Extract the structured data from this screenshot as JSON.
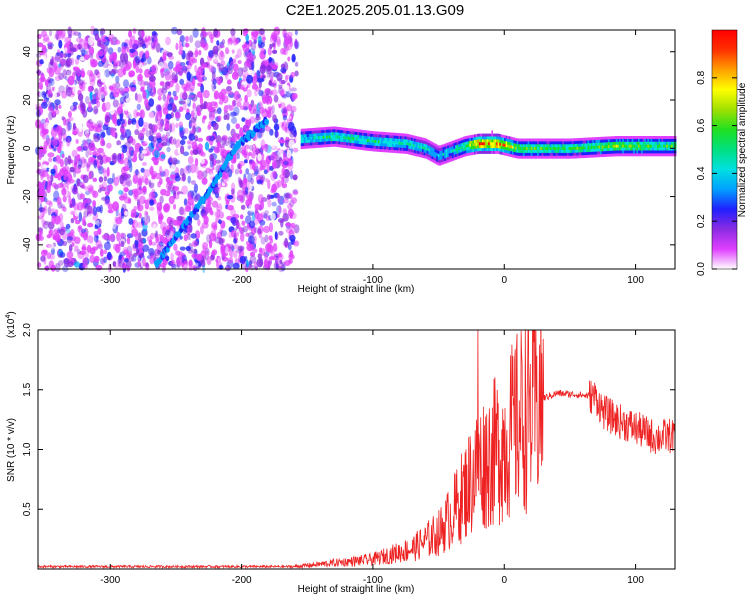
{
  "title": "C2E1.2025.205.01.13.G09",
  "chart_data": [
    {
      "type": "heatmap",
      "xlabel": "Height of straight line (km)",
      "ylabel": "Frequency (Hz)",
      "xlim": [
        -355,
        130
      ],
      "ylim": [
        -50,
        49
      ],
      "xticks": [
        -300,
        -200,
        -100,
        0,
        100
      ],
      "yticks": [
        -40,
        -20,
        0,
        20,
        40
      ],
      "colorbar": {
        "label": "Normalized spectral amplitude",
        "range": [
          0,
          1
        ],
        "ticks": [
          0.0,
          0.2,
          0.4,
          0.6,
          0.8
        ],
        "colors": [
          "#ffffff",
          "#e040ff",
          "#8a2be2",
          "#2020ff",
          "#00a0ff",
          "#00e0e0",
          "#00e080",
          "#20e020",
          "#a0e000",
          "#ffff00",
          "#ffa000",
          "#ff3000",
          "#ff0000"
        ]
      },
      "features": {
        "noise_region_x": [
          -355,
          -158
        ],
        "signal_line": [
          {
            "x": -155,
            "y": 4,
            "amp": 0.45
          },
          {
            "x": -130,
            "y": 5,
            "amp": 0.5
          },
          {
            "x": -100,
            "y": 3,
            "amp": 0.5
          },
          {
            "x": -75,
            "y": 2,
            "amp": 0.45
          },
          {
            "x": -60,
            "y": 0,
            "amp": 0.45
          },
          {
            "x": -50,
            "y": -3,
            "amp": 0.4
          },
          {
            "x": -40,
            "y": -1,
            "amp": 0.45
          },
          {
            "x": -30,
            "y": 1,
            "amp": 0.6
          },
          {
            "x": -20,
            "y": 2,
            "amp": 0.9
          },
          {
            "x": -5,
            "y": 2,
            "amp": 0.9
          },
          {
            "x": 10,
            "y": 0,
            "amp": 0.6
          },
          {
            "x": 50,
            "y": 0,
            "amp": 0.55
          },
          {
            "x": 85,
            "y": 1,
            "amp": 0.65
          },
          {
            "x": 130,
            "y": 1,
            "amp": 0.55
          }
        ],
        "diagonal_trace": [
          {
            "x": -265,
            "y": -48
          },
          {
            "x": -225,
            "y": -18
          },
          {
            "x": -205,
            "y": 0
          },
          {
            "x": -180,
            "y": 12
          }
        ]
      }
    },
    {
      "type": "line",
      "xlabel": "Height of straight line (km)",
      "ylabel": "SNR (10 * v/v)",
      "yscale_label": "(x10",
      "yscale_exp": "4",
      "yscale_close": ")",
      "xlim": [
        -355,
        130
      ],
      "ylim": [
        0,
        2.0
      ],
      "xticks": [
        -300,
        -200,
        -100,
        0,
        100
      ],
      "yticks": [
        0.5,
        1.0,
        1.5,
        2.0
      ],
      "series": [
        {
          "color": "#ee2222",
          "envelope": [
            {
              "x": -355,
              "y": 0.02
            },
            {
              "x": -160,
              "y": 0.02
            },
            {
              "x": -140,
              "y": 0.04
            },
            {
              "x": -100,
              "y": 0.08
            },
            {
              "x": -70,
              "y": 0.17
            },
            {
              "x": -50,
              "y": 0.3
            },
            {
              "x": -40,
              "y": 0.45
            },
            {
              "x": -30,
              "y": 0.65
            },
            {
              "x": -20,
              "y": 0.85
            },
            {
              "x": -10,
              "y": 0.95
            },
            {
              "x": 0,
              "y": 1.05
            },
            {
              "x": 10,
              "y": 1.22
            },
            {
              "x": 20,
              "y": 1.35
            },
            {
              "x": 30,
              "y": 1.43
            },
            {
              "x": 40,
              "y": 1.47
            },
            {
              "x": 55,
              "y": 1.46
            },
            {
              "x": 70,
              "y": 1.44
            },
            {
              "x": 75,
              "y": 1.32
            },
            {
              "x": 85,
              "y": 1.25
            },
            {
              "x": 100,
              "y": 1.18
            },
            {
              "x": 115,
              "y": 1.1
            },
            {
              "x": 130,
              "y": 1.12
            }
          ],
          "spike": {
            "x": -20,
            "y": 2.0
          }
        }
      ]
    }
  ]
}
